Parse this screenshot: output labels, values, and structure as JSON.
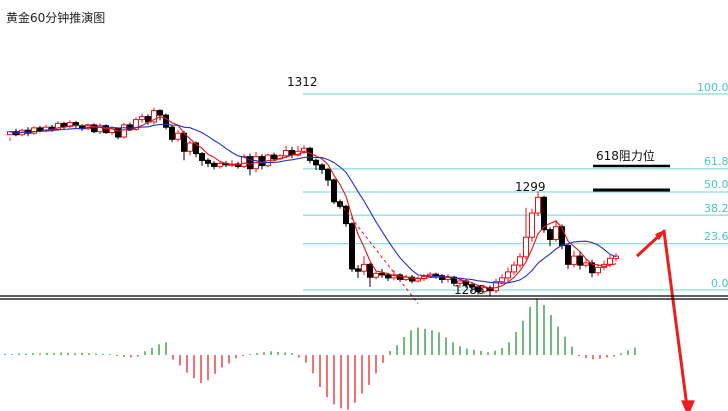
{
  "chart_data": {
    "type": "candlestick",
    "title": "黄金60分钟推演图",
    "annotations": {
      "high_label": "1312",
      "mid_high_label": "1299",
      "low_label": "1286",
      "resistance_label": "618阻力位"
    },
    "fib_levels": [
      {
        "label": "100.0"
      },
      {
        "label": "61.8"
      },
      {
        "label": "50.0"
      },
      {
        "label": "38.2"
      },
      {
        "label": "23.6"
      },
      {
        "label": "0.0"
      }
    ],
    "candles": [
      [
        1306.6,
        1307.0,
        1306.2,
        1305.8
      ],
      [
        1307.0,
        1306.6,
        1307.4,
        1306.4
      ],
      [
        1306.6,
        1307.2,
        1307.4,
        1306.4
      ],
      [
        1307.2,
        1306.8,
        1307.6,
        1306.4
      ],
      [
        1306.8,
        1307.5,
        1307.7,
        1306.6
      ],
      [
        1307.5,
        1307.1,
        1307.8,
        1306.9
      ],
      [
        1307.1,
        1307.6,
        1307.9,
        1306.9
      ],
      [
        1307.6,
        1307.3,
        1307.9,
        1307.0
      ],
      [
        1307.3,
        1308.1,
        1308.4,
        1307.1
      ],
      [
        1308.1,
        1307.7,
        1308.3,
        1307.3
      ],
      [
        1307.7,
        1308.2,
        1308.5,
        1307.5
      ],
      [
        1308.2,
        1307.8,
        1308.4,
        1307.5
      ],
      [
        1307.8,
        1307.4,
        1308.0,
        1307.1
      ],
      [
        1307.4,
        1307.9,
        1308.1,
        1307.2
      ],
      [
        1307.9,
        1307.0,
        1308.1,
        1306.8
      ],
      [
        1307.0,
        1307.8,
        1308.1,
        1306.7
      ],
      [
        1307.8,
        1306.9,
        1308.0,
        1306.7
      ],
      [
        1306.9,
        1307.4,
        1307.7,
        1306.6
      ],
      [
        1307.4,
        1306.3,
        1307.6,
        1306.0
      ],
      [
        1306.3,
        1307.9,
        1308.2,
        1306.1
      ],
      [
        1307.9,
        1307.3,
        1308.2,
        1307.1
      ],
      [
        1307.3,
        1308.6,
        1308.9,
        1307.1
      ],
      [
        1308.6,
        1309.0,
        1309.4,
        1308.2
      ],
      [
        1309.0,
        1308.3,
        1309.3,
        1307.9
      ],
      [
        1308.3,
        1309.8,
        1310.2,
        1308.0
      ],
      [
        1309.8,
        1309.2,
        1310.0,
        1308.5
      ],
      [
        1309.2,
        1307.6,
        1309.4,
        1307.3
      ],
      [
        1307.6,
        1306.0,
        1307.9,
        1305.6
      ],
      [
        1306.0,
        1306.8,
        1307.2,
        1305.7
      ],
      [
        1306.8,
        1304.4,
        1307.1,
        1303.2
      ],
      [
        1304.4,
        1305.5,
        1305.8,
        1303.9
      ],
      [
        1305.5,
        1304.1,
        1305.7,
        1303.6
      ],
      [
        1304.1,
        1303.2,
        1304.3,
        1302.5
      ],
      [
        1303.2,
        1302.8,
        1303.5,
        1302.3
      ],
      [
        1302.8,
        1302.4,
        1303.1,
        1302.0
      ],
      [
        1302.4,
        1302.8,
        1303.1,
        1302.1
      ],
      [
        1302.8,
        1302.6,
        1303.1,
        1302.3
      ],
      [
        1302.6,
        1302.7,
        1303.2,
        1302.3
      ],
      [
        1302.7,
        1302.4,
        1303.0,
        1302.1
      ],
      [
        1302.4,
        1303.7,
        1304.0,
        1302.2
      ],
      [
        1303.7,
        1302.1,
        1304.1,
        1301.2
      ],
      [
        1302.1,
        1303.7,
        1304.3,
        1301.6
      ],
      [
        1303.7,
        1302.5,
        1304.0,
        1302.0
      ],
      [
        1302.5,
        1303.9,
        1304.1,
        1302.3
      ],
      [
        1303.9,
        1303.4,
        1304.2,
        1303.1
      ],
      [
        1303.4,
        1303.8,
        1304.0,
        1303.2
      ],
      [
        1303.8,
        1304.5,
        1305.1,
        1303.5
      ],
      [
        1304.5,
        1303.9,
        1305.0,
        1303.5
      ],
      [
        1303.9,
        1304.4,
        1305.1,
        1303.7
      ],
      [
        1304.4,
        1304.8,
        1305.2,
        1304.1
      ],
      [
        1304.8,
        1303.2,
        1305.0,
        1302.8
      ],
      [
        1303.2,
        1302.6,
        1303.4,
        1301.9
      ],
      [
        1302.6,
        1302.0,
        1302.8,
        1301.4
      ],
      [
        1302.0,
        1300.6,
        1302.2,
        1299.8
      ],
      [
        1300.6,
        1297.7,
        1300.8,
        1297.4
      ],
      [
        1297.7,
        1297.1,
        1298.0,
        1296.8
      ],
      [
        1297.1,
        1294.8,
        1297.3,
        1294.4
      ],
      [
        1294.8,
        1288.8,
        1295.0,
        1288.4
      ],
      [
        1288.8,
        1288.5,
        1289.3,
        1287.6
      ],
      [
        1288.5,
        1289.4,
        1290.5,
        1288.0
      ],
      [
        1289.4,
        1287.7,
        1289.6,
        1286.4
      ],
      [
        1287.7,
        1288.2,
        1288.5,
        1287.4
      ],
      [
        1288.2,
        1288.0,
        1288.8,
        1287.6
      ],
      [
        1288.0,
        1287.6,
        1288.3,
        1287.2
      ],
      [
        1287.6,
        1288.0,
        1288.6,
        1287.3
      ],
      [
        1288.0,
        1287.4,
        1288.2,
        1287.1
      ],
      [
        1287.4,
        1287.7,
        1288.0,
        1287.2
      ],
      [
        1287.7,
        1287.2,
        1288.0,
        1286.9
      ],
      [
        1287.2,
        1287.5,
        1287.8,
        1287.0
      ],
      [
        1287.5,
        1287.8,
        1288.1,
        1287.2
      ],
      [
        1287.8,
        1288.1,
        1288.4,
        1287.6
      ],
      [
        1288.1,
        1287.9,
        1288.3,
        1287.5
      ],
      [
        1287.9,
        1287.4,
        1288.1,
        1286.9
      ],
      [
        1287.4,
        1287.7,
        1288.1,
        1287.0
      ],
      [
        1287.7,
        1286.9,
        1287.9,
        1286.5
      ],
      [
        1286.9,
        1287.2,
        1287.6,
        1286.3
      ],
      [
        1287.2,
        1286.7,
        1287.4,
        1286.3
      ],
      [
        1286.7,
        1286.4,
        1286.9,
        1285.8
      ],
      [
        1286.4,
        1285.8,
        1286.7,
        1285.4
      ],
      [
        1285.8,
        1286.3,
        1286.7,
        1285.5
      ],
      [
        1286.3,
        1285.9,
        1286.6,
        1285.2
      ],
      [
        1285.9,
        1287.1,
        1287.5,
        1285.6
      ],
      [
        1287.1,
        1287.6,
        1288.1,
        1286.8
      ],
      [
        1287.6,
        1288.4,
        1289.0,
        1287.2
      ],
      [
        1288.4,
        1289.3,
        1289.8,
        1288.0
      ],
      [
        1289.3,
        1290.4,
        1290.9,
        1288.9
      ],
      [
        1290.4,
        1293.0,
        1296.9,
        1290.0
      ],
      [
        1293.0,
        1296.2,
        1296.8,
        1292.4
      ],
      [
        1296.2,
        1298.3,
        1299.1,
        1295.8
      ],
      [
        1298.3,
        1294.0,
        1298.5,
        1293.6
      ],
      [
        1294.0,
        1292.7,
        1294.3,
        1291.8
      ],
      [
        1292.7,
        1294.4,
        1295.3,
        1292.4
      ],
      [
        1294.4,
        1291.9,
        1294.7,
        1291.4
      ],
      [
        1291.9,
        1289.4,
        1292.1,
        1288.8
      ],
      [
        1289.4,
        1290.5,
        1291.2,
        1289.0
      ],
      [
        1290.5,
        1289.3,
        1291.0,
        1288.7
      ],
      [
        1289.3,
        1289.6,
        1290.1,
        1289.0
      ],
      [
        1289.6,
        1288.3,
        1290.0,
        1287.7
      ],
      [
        1288.3,
        1289.0,
        1289.4,
        1287.9
      ],
      [
        1289.0,
        1289.4,
        1289.9,
        1288.6
      ],
      [
        1289.4,
        1290.2,
        1290.6,
        1289.0
      ],
      [
        1290.2,
        1290.5,
        1290.9,
        1289.8
      ]
    ],
    "forecast": {
      "path": [
        [
          104.5,
          1290.5
        ],
        [
          109,
          1293.8
        ],
        [
          113,
          1269.5
        ]
      ]
    },
    "oscillator": {
      "values": [
        0.4,
        0.3,
        0.5,
        0.4,
        0.6,
        0.5,
        0.7,
        0.6,
        0.8,
        0.7,
        0.6,
        0.7,
        0.6,
        0.5,
        0.4,
        0.3,
        -0.3,
        -0.6,
        -0.8,
        -0.5,
        1.2,
        2.3,
        3.5,
        4.2,
        -1.5,
        -3.4,
        -5.8,
        -7.6,
        -9.2,
        -8.3,
        -6.2,
        -4.1,
        -2.8,
        -1.1,
        -0.4,
        0.3,
        0.6,
        0.9,
        1.2,
        1.0,
        0.8,
        0.6,
        -0.8,
        -2.5,
        -6.0,
        -10.5,
        -13.8,
        -16.2,
        -17.5,
        -17.9,
        -15.6,
        -12.7,
        -9.8,
        -6.1,
        -2.6,
        1.3,
        3.2,
        5.9,
        8.1,
        9.0,
        8.6,
        8.1,
        7.4,
        5.8,
        4.2,
        2.9,
        2.1,
        1.7,
        1.3,
        0.9,
        1.4,
        2.3,
        4.2,
        7.5,
        11.2,
        15.8,
        18.6,
        16.4,
        13.1,
        9.3,
        6.0,
        2.8,
        -0.4,
        -1.0,
        -1.4,
        -1.2,
        -0.8,
        -0.5,
        0.6,
        1.5,
        2.4
      ]
    }
  }
}
